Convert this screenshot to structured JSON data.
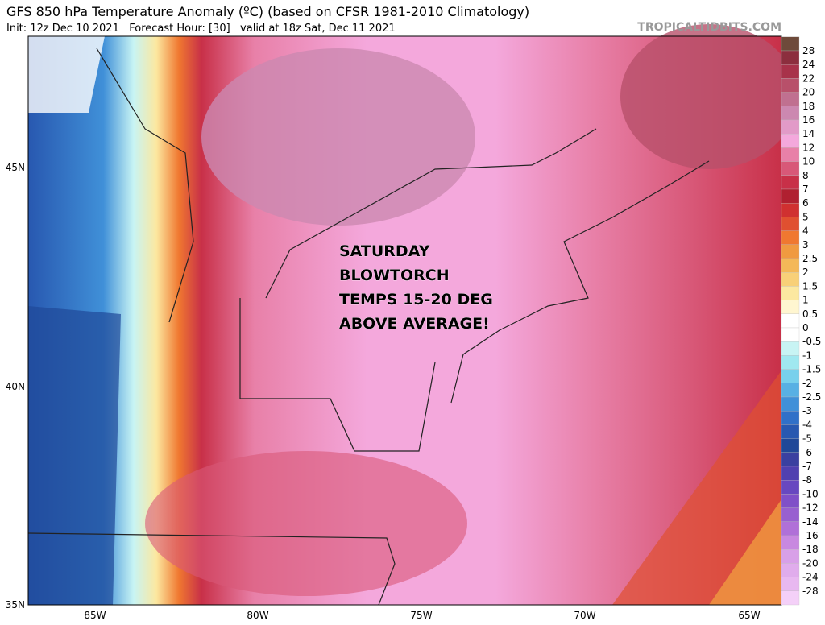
{
  "header": {
    "title": "GFS 850 hPa Temperature Anomaly (ºC) (based on CFSR 1981-2010 Climatology)",
    "subtitle": "Init: 12z Dec 10 2021   Forecast Hour: [30]   valid at 18z Sat, Dec 11 2021",
    "watermark": "TROPICALTIDBITS.COM"
  },
  "annotation": [
    "SATURDAY",
    "BLOWTORCH",
    "TEMPS 15-20 DEG",
    "ABOVE AVERAGE!"
  ],
  "lat_labels": [
    "45N",
    "40N",
    "35N"
  ],
  "lon_labels": [
    "85W",
    "80W",
    "75W",
    "70W",
    "65W"
  ],
  "colorbar": {
    "labels": [
      "28",
      "24",
      "22",
      "20",
      "18",
      "16",
      "14",
      "12",
      "10",
      "8",
      "7",
      "6",
      "5",
      "4",
      "3",
      "2.5",
      "2",
      "1.5",
      "1",
      "0.5",
      "0",
      "-0.5",
      "-1",
      "-1.5",
      "-2",
      "-2.5",
      "-3",
      "-4",
      "-5",
      "-6",
      "-7",
      "-8",
      "-10",
      "-12",
      "-14",
      "-16",
      "-18",
      "-20",
      "-24",
      "-28"
    ],
    "colors": [
      "#6e4a3a",
      "#8c2e3e",
      "#a8324a",
      "#b8506a",
      "#c07090",
      "#cc88b0",
      "#e29ac8",
      "#f4a8dc",
      "#e880a8",
      "#d85878",
      "#c83048",
      "#b02030",
      "#d03030",
      "#e05030",
      "#f07830",
      "#f09a40",
      "#f4b858",
      "#f8d078",
      "#fce8a0",
      "#fff6d0",
      "#ffffff",
      "#ffffff",
      "#c8f4f4",
      "#a0e8f0",
      "#78d0ec",
      "#58b0e4",
      "#4090d8",
      "#3070c8",
      "#2858b0",
      "#204898",
      "#3a40a0",
      "#5040b0",
      "#6848c0",
      "#8050c8",
      "#9860d0",
      "#b070d8",
      "#c888e0",
      "#d8a0e8",
      "#e0acec",
      "#e8b8f0",
      "#f4d0f8"
    ]
  }
}
